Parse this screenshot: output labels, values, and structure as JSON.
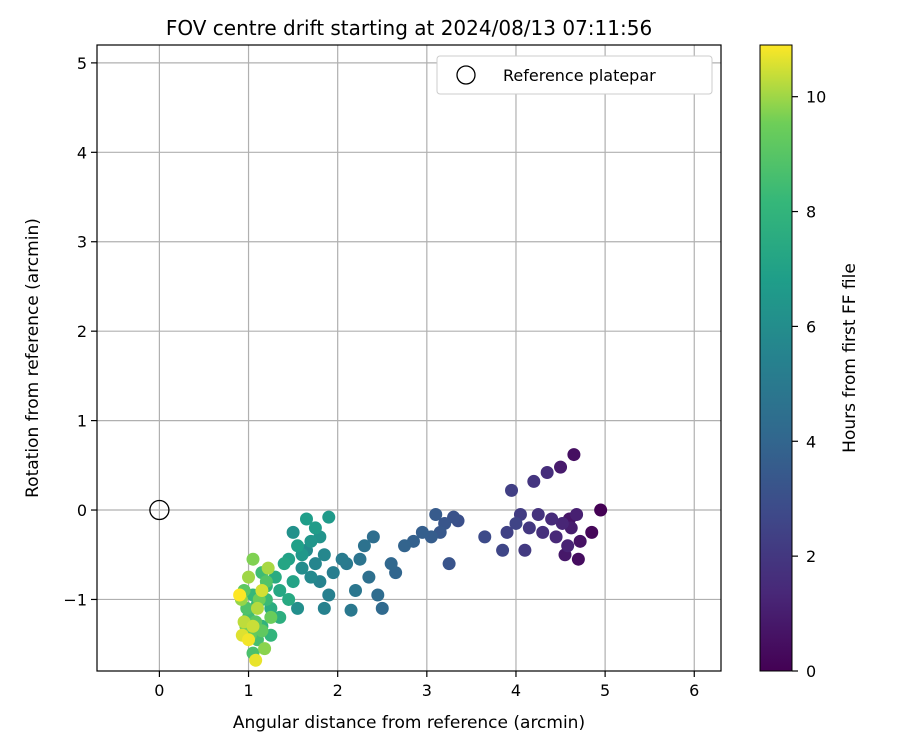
{
  "chart_data": {
    "type": "scatter",
    "title": "FOV centre drift starting at 2024/08/13 07:11:56",
    "xlabel": "Angular distance from reference (arcmin)",
    "ylabel": "Rotation from reference (arcmin)",
    "xlim": [
      -0.7,
      6.3
    ],
    "ylim": [
      -1.8,
      5.2
    ],
    "xticks": [
      0,
      1,
      2,
      3,
      4,
      5,
      6
    ],
    "yticks": [
      -1,
      0,
      1,
      2,
      3,
      4,
      5
    ],
    "grid": true,
    "legend": {
      "position": "top-right",
      "entries": [
        "Reference platepar"
      ]
    },
    "reference_point": {
      "name": "Reference platepar",
      "x": 0,
      "y": 0
    },
    "colorbar": {
      "label": "Hours from first FF file",
      "range": [
        0,
        10.9
      ],
      "ticks": [
        0,
        2,
        4,
        6,
        8,
        10
      ],
      "colormap": "viridis"
    },
    "series": [
      {
        "points": [
          [
            4.95,
            0.0,
            0.0
          ],
          [
            4.85,
            -0.25,
            0.2
          ],
          [
            4.7,
            -0.55,
            0.4
          ],
          [
            4.65,
            0.62,
            0.5
          ],
          [
            4.72,
            -0.35,
            0.6
          ],
          [
            4.6,
            -0.1,
            0.7
          ],
          [
            4.55,
            -0.5,
            0.8
          ],
          [
            4.5,
            0.48,
            0.9
          ],
          [
            4.62,
            -0.2,
            1.0
          ],
          [
            4.68,
            -0.05,
            1.1
          ],
          [
            4.58,
            -0.4,
            1.2
          ],
          [
            4.52,
            -0.15,
            1.3
          ],
          [
            4.45,
            -0.3,
            1.4
          ],
          [
            4.4,
            -0.1,
            1.5
          ],
          [
            4.35,
            0.42,
            1.6
          ],
          [
            4.3,
            -0.25,
            1.7
          ],
          [
            4.25,
            -0.05,
            1.8
          ],
          [
            4.2,
            0.32,
            1.9
          ],
          [
            4.15,
            -0.2,
            2.0
          ],
          [
            4.1,
            -0.45,
            2.1
          ],
          [
            4.05,
            -0.05,
            2.2
          ],
          [
            3.95,
            0.22,
            2.3
          ],
          [
            3.9,
            -0.25,
            2.4
          ],
          [
            4.0,
            -0.15,
            2.5
          ],
          [
            3.85,
            -0.45,
            2.6
          ],
          [
            3.65,
            -0.3,
            2.8
          ],
          [
            3.35,
            -0.12,
            3.0
          ],
          [
            3.3,
            -0.08,
            3.1
          ],
          [
            3.25,
            -0.6,
            3.2
          ],
          [
            3.2,
            -0.15,
            3.3
          ],
          [
            3.15,
            -0.25,
            3.4
          ],
          [
            3.1,
            -0.05,
            3.5
          ],
          [
            3.05,
            -0.3,
            3.6
          ],
          [
            2.95,
            -0.25,
            3.7
          ],
          [
            2.85,
            -0.35,
            3.8
          ],
          [
            2.75,
            -0.4,
            3.9
          ],
          [
            2.65,
            -0.7,
            4.0
          ],
          [
            2.6,
            -0.6,
            4.1
          ],
          [
            2.5,
            -1.1,
            4.2
          ],
          [
            2.45,
            -0.95,
            4.3
          ],
          [
            2.4,
            -0.3,
            4.4
          ],
          [
            2.35,
            -0.75,
            4.5
          ],
          [
            2.3,
            -0.4,
            4.6
          ],
          [
            2.25,
            -0.55,
            4.7
          ],
          [
            2.2,
            -0.9,
            4.8
          ],
          [
            2.15,
            -1.12,
            4.9
          ],
          [
            2.1,
            -0.6,
            5.0
          ],
          [
            2.05,
            -0.55,
            5.1
          ],
          [
            1.95,
            -0.7,
            5.2
          ],
          [
            1.9,
            -0.95,
            5.3
          ],
          [
            1.85,
            -1.1,
            5.4
          ],
          [
            1.8,
            -0.8,
            5.5
          ],
          [
            1.75,
            -0.6,
            5.6
          ],
          [
            1.85,
            -0.5,
            5.7
          ],
          [
            1.7,
            -0.75,
            5.8
          ],
          [
            1.65,
            -0.45,
            5.9
          ],
          [
            1.6,
            -0.65,
            6.0
          ],
          [
            1.55,
            -1.1,
            6.1
          ],
          [
            1.5,
            -0.25,
            6.2
          ],
          [
            1.8,
            -0.3,
            6.3
          ],
          [
            1.7,
            -0.35,
            6.4
          ],
          [
            1.6,
            -0.5,
            6.5
          ],
          [
            1.9,
            -0.08,
            6.6
          ],
          [
            1.75,
            -0.2,
            6.7
          ],
          [
            1.65,
            -0.1,
            6.8
          ],
          [
            1.55,
            -0.4,
            6.9
          ],
          [
            1.45,
            -0.55,
            7.0
          ],
          [
            1.5,
            -0.8,
            7.1
          ],
          [
            1.4,
            -0.6,
            7.2
          ],
          [
            1.35,
            -0.9,
            7.3
          ],
          [
            1.45,
            -1.0,
            7.4
          ],
          [
            1.3,
            -0.75,
            7.5
          ],
          [
            1.25,
            -1.1,
            7.6
          ],
          [
            1.35,
            -1.2,
            7.7
          ],
          [
            1.2,
            -0.85,
            7.8
          ],
          [
            1.15,
            -1.3,
            7.9
          ],
          [
            1.25,
            -1.4,
            8.0
          ],
          [
            1.1,
            -1.05,
            8.1
          ],
          [
            1.05,
            -0.95,
            8.2
          ],
          [
            1.2,
            -1.0,
            8.3
          ],
          [
            1.15,
            -0.7,
            8.4
          ],
          [
            1.0,
            -1.2,
            8.5
          ],
          [
            1.1,
            -1.45,
            8.6
          ],
          [
            1.05,
            -1.6,
            8.7
          ],
          [
            0.98,
            -1.1,
            8.8
          ],
          [
            1.2,
            -0.8,
            8.9
          ],
          [
            1.08,
            -1.25,
            9.0
          ],
          [
            0.95,
            -0.9,
            9.1
          ],
          [
            1.15,
            -1.35,
            9.2
          ],
          [
            1.02,
            -1.4,
            9.3
          ],
          [
            1.25,
            -1.2,
            9.4
          ],
          [
            1.12,
            -1.0,
            9.5
          ],
          [
            0.97,
            -1.3,
            9.6
          ],
          [
            1.05,
            -0.55,
            9.7
          ],
          [
            1.18,
            -1.55,
            9.8
          ],
          [
            0.92,
            -1.0,
            9.9
          ],
          [
            1.0,
            -0.75,
            10.0
          ],
          [
            1.22,
            -0.65,
            10.1
          ],
          [
            1.1,
            -1.1,
            10.2
          ],
          [
            0.95,
            -1.25,
            10.3
          ],
          [
            1.05,
            -1.3,
            10.4
          ],
          [
            1.15,
            -0.9,
            10.5
          ],
          [
            0.93,
            -1.4,
            10.6
          ],
          [
            1.08,
            -1.68,
            10.7
          ],
          [
            1.0,
            -1.45,
            10.8
          ],
          [
            0.9,
            -0.95,
            10.9
          ]
        ]
      }
    ]
  },
  "colors": {
    "reference_marker": "#000000",
    "frame": "#000000",
    "grid": "#b0b0b0"
  }
}
